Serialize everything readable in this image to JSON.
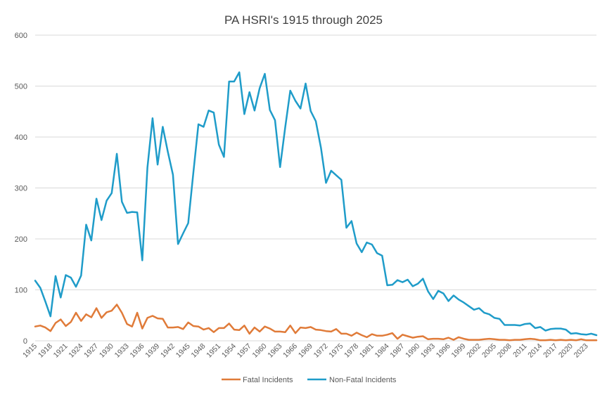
{
  "chart_data": {
    "type": "line",
    "title": "PA HSRI's 1915 through 2025",
    "xlabel": "",
    "ylabel": "",
    "ylim": [
      0,
      600
    ],
    "yticks": [
      "0",
      "100",
      "200",
      "300",
      "400",
      "500",
      "600"
    ],
    "x_start": 1915,
    "x_end": 2025,
    "xtick_labels": [
      "1915",
      "1918",
      "1921",
      "1924",
      "1927",
      "1930",
      "1933",
      "1936",
      "1939",
      "1942",
      "1945",
      "1948",
      "1951",
      "1954",
      "1957",
      "1960",
      "1963",
      "1966",
      "1969",
      "1972",
      "1975",
      "1978",
      "1981",
      "1984",
      "1987",
      "1990",
      "1993",
      "1996",
      "1999",
      "2002",
      "2005",
      "2008",
      "2011",
      "2014",
      "2017",
      "2020",
      "2023"
    ],
    "grid": true,
    "legend_position": "bottom",
    "series": [
      {
        "name": "Fatal Incidents",
        "color": "#e07b39",
        "values": [
          28,
          30,
          26,
          19,
          35,
          42,
          29,
          37,
          55,
          39,
          52,
          46,
          64,
          45,
          56,
          59,
          71,
          55,
          33,
          28,
          55,
          24,
          45,
          49,
          44,
          43,
          26,
          26,
          27,
          23,
          36,
          29,
          28,
          22,
          25,
          17,
          25,
          25,
          34,
          22,
          21,
          30,
          14,
          26,
          18,
          28,
          24,
          18,
          18,
          17,
          30,
          15,
          26,
          25,
          27,
          22,
          21,
          19,
          18,
          23,
          14,
          14,
          10,
          16,
          11,
          7,
          13,
          10,
          10,
          12,
          15,
          4,
          12,
          9,
          6,
          8,
          9,
          3,
          4,
          4,
          3,
          6,
          2,
          7,
          4,
          2,
          2,
          2,
          3,
          4,
          3,
          2,
          2,
          1,
          2,
          2,
          3,
          4,
          3,
          1,
          1,
          2,
          1,
          2,
          1,
          2,
          1,
          3,
          1,
          1,
          1
        ]
      },
      {
        "name": "Non-Fatal Incidents",
        "color": "#1f9cc9",
        "values": [
          118,
          104,
          77,
          48,
          127,
          85,
          129,
          124,
          106,
          128,
          228,
          197,
          279,
          237,
          275,
          290,
          367,
          273,
          251,
          253,
          252,
          158,
          340,
          437,
          346,
          420,
          371,
          326,
          190,
          211,
          231,
          330,
          425,
          420,
          452,
          448,
          385,
          361,
          509,
          509,
          527,
          445,
          488,
          452,
          496,
          524,
          453,
          433,
          341,
          419,
          491,
          471,
          456,
          505,
          451,
          431,
          379,
          310,
          334,
          325,
          316,
          222,
          235,
          191,
          174,
          193,
          189,
          172,
          167,
          109,
          110,
          119,
          115,
          120,
          107,
          112,
          122,
          97,
          82,
          98,
          93,
          78,
          89,
          81,
          75,
          68,
          61,
          64,
          55,
          52,
          45,
          43,
          31,
          31,
          31,
          30,
          33,
          34,
          25,
          27,
          20,
          23,
          24,
          24,
          22,
          14,
          15,
          13,
          12,
          14,
          11
        ]
      }
    ]
  }
}
